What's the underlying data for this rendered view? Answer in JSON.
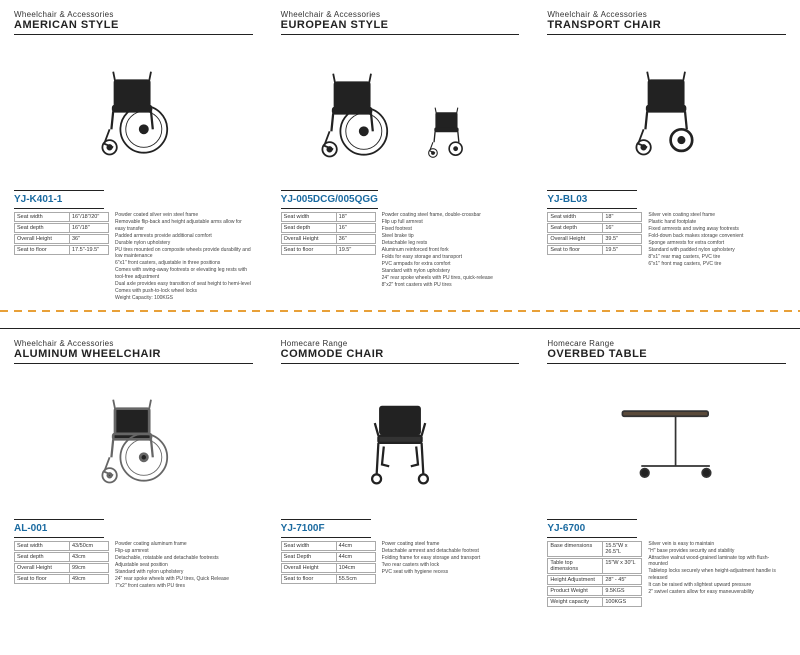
{
  "divider_color": "#e8a038",
  "products": [
    {
      "cat": "Wheelchair & Accessories",
      "title": "AMERICAN STYLE",
      "model": "YJ-K401-1",
      "specs": [
        [
          "Seat width",
          "16\"/18\"/20\""
        ],
        [
          "Seat depth",
          "16\"/18\""
        ],
        [
          "Overall Height",
          "36\""
        ],
        [
          "Seat to floor",
          "17.5\"-19.5\""
        ]
      ],
      "feat": [
        "Powder coated silver vein steel frame",
        "Removable flip-back and height adjustable arms allow for easy transfer",
        "Padded armrests provide additional comfort",
        "Durable nylon upholstery",
        "PU tires mounted on composite wheels provide durability and low maintenance",
        "6\"x1\" front casters, adjustable in three positions",
        "Comes with swing-away footrests or elevating leg rests with tool-free adjustment",
        "Dual axle provides easy transition of seat height to hemi-level",
        "Comes with push-to-lock wheel locks",
        "Weight Capacity: 100KGS"
      ]
    },
    {
      "cat": "Wheelchair & Accessories",
      "title": "EUROPEAN STYLE",
      "model": "YJ-005DCG/005QGG",
      "specs": [
        [
          "Seat width",
          "18\""
        ],
        [
          "Seat depth",
          "16\""
        ],
        [
          "Overall Height",
          "36\""
        ],
        [
          "Seat to floor",
          "19.5\""
        ]
      ],
      "feat": [
        "Powder coating steel frame, double-crossbar",
        "Flip up full armrest",
        "Fixed footrest",
        "Steel brake tip",
        "Detachable leg rests",
        "Aluminum reinforced front fork",
        "Folds for easy storage and transport",
        "PVC armpads for extra comfort",
        "Standard with nylon upholstery",
        "24\" rear spoke wheels with PU tires, quick-release",
        "8\"x2\" front casters with PU tires"
      ]
    },
    {
      "cat": "Wheelchair & Accessories",
      "title": "TRANSPORT CHAIR",
      "model": "YJ-BL03",
      "specs": [
        [
          "Seat width",
          "18\""
        ],
        [
          "Seat depth",
          "16\""
        ],
        [
          "Overall Height",
          "39.5\""
        ],
        [
          "Seat to floor",
          "19.5\""
        ]
      ],
      "feat": [
        "Silver vein coating steel frame",
        "Plastic hand footplate",
        "Fixed armrests and swing away footrests",
        "Fold-down back makes storage convenient",
        "Sponge armrests for extra comfort",
        "Standard with padded nylon upholstery",
        "8\"x1\" rear mag casters, PVC tire",
        "6\"x1\" front mag casters, PVC tire"
      ]
    },
    {
      "cat": "Wheelchair & Accessories",
      "title": "ALUMINUM WHEELCHAIR",
      "model": "AL-001",
      "specs": [
        [
          "Seat width",
          "43/50cm"
        ],
        [
          "Seat depth",
          "43cm"
        ],
        [
          "Overall Height",
          "99cm"
        ],
        [
          "Seat to floor",
          "49cm"
        ]
      ],
      "feat": [
        "Powder coating aluminum frame",
        "Flip-up armrest",
        "Detachable, rotatable and detachable footrests",
        "Adjustable seat position",
        "Standard with nylon upholstery",
        "24\" rear spoke wheels with PU tires, Quick Release",
        "7\"x2\" front casters with PU tires"
      ]
    },
    {
      "cat": "Homecare Range",
      "title": "COMMODE CHAIR",
      "model": "YJ-7100F",
      "specs": [
        [
          "Seat width",
          "44cm"
        ],
        [
          "Seat Depth",
          "44cm"
        ],
        [
          "Overall Height",
          "104cm"
        ],
        [
          "Seat to floor",
          "55.5cm"
        ]
      ],
      "feat": [
        "Power coating steel frame",
        "Detachable armrest and detachable footrest",
        "Folding frame for easy storage and transport",
        "Two rear casters with lock",
        "PVC seat with hygiene recess"
      ]
    },
    {
      "cat": "Homecare Range",
      "title": "OVERBED TABLE",
      "model": "YJ-6700",
      "specs": [
        [
          "Base dimensions",
          "15.5\"W x 26.5\"L"
        ],
        [
          "Table top dimensions",
          "15\"W x 30\"L"
        ],
        [
          "Height Adjustment",
          "28\" - 45\""
        ],
        [
          "Product Weight",
          "9.5KGS"
        ],
        [
          "Weight capacity",
          "100KGS"
        ]
      ],
      "feat": [
        "Silver vein is easy to maintain",
        "\"H\" base provides security and stability",
        "Attractive walnut wood-grained laminate top with flush-mounted",
        "Tabletop locks securely when height-adjustment handle is released",
        "It can be raised with slightest upward pressure",
        "2\" swivel casters allow for easy maneuverability"
      ]
    }
  ]
}
